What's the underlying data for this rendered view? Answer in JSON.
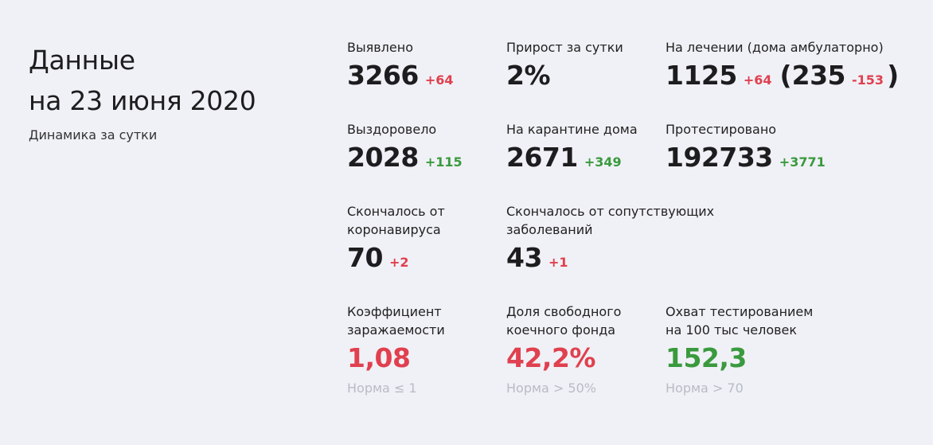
{
  "header": {
    "title_line1": "Данные",
    "title_line2": "на 23 июня 2020",
    "subtitle": "Динамика за сутки"
  },
  "stats": {
    "detected": {
      "label": "Выявлено",
      "value": "3266",
      "delta": "+64"
    },
    "daily_growth": {
      "label": "Прирост за сутки",
      "value": "2%"
    },
    "in_treatment": {
      "label": "На лечении (дома амбулаторно)",
      "value": "1125",
      "delta": "+64",
      "home_value": "235",
      "home_delta": "-153"
    },
    "recovered": {
      "label": "Выздоровело",
      "value": "2028",
      "delta": "+115"
    },
    "quarantine": {
      "label": "На карантине дома",
      "value": "2671",
      "delta": "+349"
    },
    "tested": {
      "label": "Протестировано",
      "value": "192733",
      "delta": "+3771"
    },
    "died_covid": {
      "label_line1": "Скончалось от",
      "label_line2": "коронавируса",
      "value": "70",
      "delta": "+2"
    },
    "died_comorbid": {
      "label_line1": "Скончалось от сопутствующих",
      "label_line2": "заболеваний",
      "value": "43",
      "delta": "+1"
    },
    "infection_rate": {
      "label_line1": "Коэффициент",
      "label_line2": "заражаемости",
      "value": "1,08",
      "norm": "Норма ≤ 1"
    },
    "free_beds": {
      "label_line1": "Доля свободного",
      "label_line2": "коечного фонда",
      "value": "42,2%",
      "norm": "Норма > 50%"
    },
    "testing_coverage": {
      "label_line1": "Охват тестированием",
      "label_line2": "на 100 тыс человек",
      "value": "152,3",
      "norm": "Норма > 70"
    }
  },
  "colors": {
    "red": "#e0404f",
    "green": "#3a9a3e",
    "muted": "#b8bcc6",
    "background": "#f0f1f6"
  }
}
